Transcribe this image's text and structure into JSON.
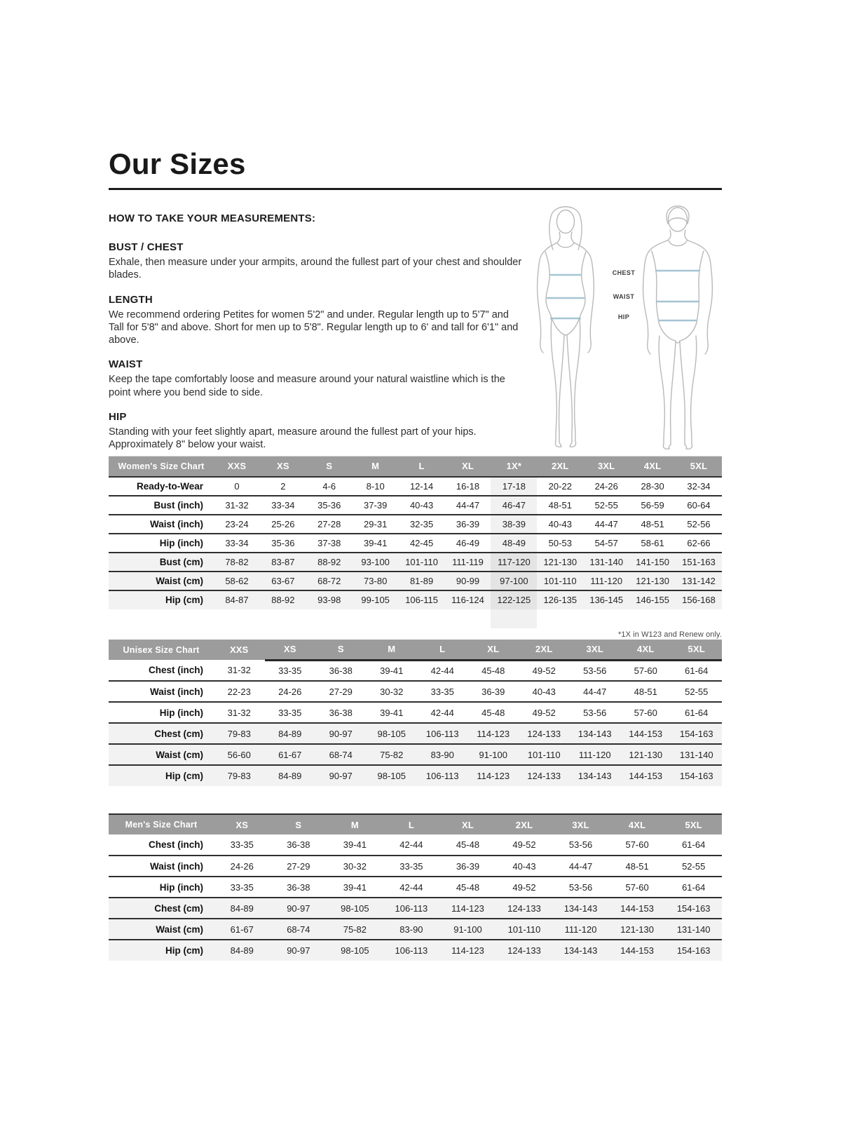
{
  "page": {
    "title": "Our Sizes",
    "how_to": "HOW TO TAKE YOUR MEASUREMENTS:",
    "sections": [
      {
        "heading": "BUST / CHEST",
        "body": "Exhale, then measure under your armpits, around the fullest part of your chest and shoulder blades."
      },
      {
        "heading": "LENGTH",
        "body": "We recommend ordering Petites for women 5'2\" and under. Regular length up to 5'7\" and Tall for 5'8\" and above. Short for men up to 5'8\". Regular length up to 6' and tall for 6'1\" and above."
      },
      {
        "heading": "WAIST",
        "body": "Keep the tape comfortably loose and measure around your natural waistline which is the point where you bend side to side."
      },
      {
        "heading": "HIP",
        "body": "Standing with your feet slightly apart, measure around the fullest part of your hips. Approximately 8\" below your waist."
      }
    ],
    "figure_labels": [
      "CHEST",
      "WAIST",
      "HIP"
    ]
  },
  "colors": {
    "header_gray": "#9c9c9c",
    "zebra_row": "#f2f2f2",
    "column_highlight": "#e9e9e9",
    "measure_line_blue": "#a6c4d4",
    "rule_black": "#1c1c1c"
  },
  "tables": [
    {
      "name": "Women's Size Chart",
      "columns": [
        "XXS",
        "XS",
        "S",
        "M",
        "L",
        "XL",
        "1X*",
        "2XL",
        "3XL",
        "4XL",
        "5XL"
      ],
      "highlight_index": 6,
      "extension_row": true,
      "footnote": "*1X in W123 and Renew only.",
      "rows": [
        {
          "label": "Ready-to-Wear",
          "shaded": false,
          "values": [
            "0",
            "2",
            "4-6",
            "8-10",
            "12-14",
            "16-18",
            "17-18",
            "20-22",
            "24-26",
            "28-30",
            "32-34"
          ]
        },
        {
          "label": "Bust (inch)",
          "shaded": false,
          "values": [
            "31-32",
            "33-34",
            "35-36",
            "37-39",
            "40-43",
            "44-47",
            "46-47",
            "48-51",
            "52-55",
            "56-59",
            "60-64"
          ]
        },
        {
          "label": "Waist (inch)",
          "shaded": false,
          "values": [
            "23-24",
            "25-26",
            "27-28",
            "29-31",
            "32-35",
            "36-39",
            "38-39",
            "40-43",
            "44-47",
            "48-51",
            "52-56"
          ]
        },
        {
          "label": "Hip (inch)",
          "shaded": false,
          "values": [
            "33-34",
            "35-36",
            "37-38",
            "39-41",
            "42-45",
            "46-49",
            "48-49",
            "50-53",
            "54-57",
            "58-61",
            "62-66"
          ]
        },
        {
          "label": "Bust (cm)",
          "shaded": true,
          "values": [
            "78-82",
            "83-87",
            "88-92",
            "93-100",
            "101-110",
            "111-119",
            "117-120",
            "121-130",
            "131-140",
            "141-150",
            "151-163"
          ]
        },
        {
          "label": "Waist (cm)",
          "shaded": true,
          "values": [
            "58-62",
            "63-67",
            "68-72",
            "73-80",
            "81-89",
            "90-99",
            "97-100",
            "101-110",
            "111-120",
            "121-130",
            "131-142"
          ]
        },
        {
          "label": "Hip (cm)",
          "shaded": true,
          "values": [
            "84-87",
            "88-92",
            "93-98",
            "99-105",
            "106-115",
            "116-124",
            "122-125",
            "126-135",
            "136-145",
            "146-155",
            "156-168"
          ]
        }
      ]
    },
    {
      "name": "Unisex Size Chart",
      "columns": [
        "XXS",
        "XS",
        "S",
        "M",
        "L",
        "XL",
        "2XL",
        "3XL",
        "4XL",
        "5XL"
      ],
      "highlight_index": -1,
      "extension_row": false,
      "footnote": "",
      "rows": [
        {
          "label": "Chest (inch)",
          "shaded": false,
          "values": [
            "31-32",
            "33-35",
            "36-38",
            "39-41",
            "42-44",
            "45-48",
            "49-52",
            "53-56",
            "57-60",
            "61-64"
          ]
        },
        {
          "label": "Waist (inch)",
          "shaded": false,
          "values": [
            "22-23",
            "24-26",
            "27-29",
            "30-32",
            "33-35",
            "36-39",
            "40-43",
            "44-47",
            "48-51",
            "52-55"
          ]
        },
        {
          "label": "Hip (inch)",
          "shaded": false,
          "values": [
            "31-32",
            "33-35",
            "36-38",
            "39-41",
            "42-44",
            "45-48",
            "49-52",
            "53-56",
            "57-60",
            "61-64"
          ]
        },
        {
          "label": "Chest (cm)",
          "shaded": true,
          "values": [
            "79-83",
            "84-89",
            "90-97",
            "98-105",
            "106-113",
            "114-123",
            "124-133",
            "134-143",
            "144-153",
            "154-163"
          ]
        },
        {
          "label": "Waist (cm)",
          "shaded": true,
          "values": [
            "56-60",
            "61-67",
            "68-74",
            "75-82",
            "83-90",
            "91-100",
            "101-110",
            "111-120",
            "121-130",
            "131-140"
          ]
        },
        {
          "label": "Hip (cm)",
          "shaded": true,
          "values": [
            "79-83",
            "84-89",
            "90-97",
            "98-105",
            "106-113",
            "114-123",
            "124-133",
            "134-143",
            "144-153",
            "154-163"
          ]
        }
      ]
    },
    {
      "name": "Men's Size Chart",
      "columns": [
        "XS",
        "S",
        "M",
        "L",
        "XL",
        "2XL",
        "3XL",
        "4XL",
        "5XL"
      ],
      "highlight_index": -1,
      "extension_row": false,
      "footnote": "",
      "rows": [
        {
          "label": "Chest (inch)",
          "shaded": false,
          "values": [
            "33-35",
            "36-38",
            "39-41",
            "42-44",
            "45-48",
            "49-52",
            "53-56",
            "57-60",
            "61-64"
          ]
        },
        {
          "label": "Waist (inch)",
          "shaded": false,
          "values": [
            "24-26",
            "27-29",
            "30-32",
            "33-35",
            "36-39",
            "40-43",
            "44-47",
            "48-51",
            "52-55"
          ]
        },
        {
          "label": "Hip (inch)",
          "shaded": false,
          "values": [
            "33-35",
            "36-38",
            "39-41",
            "42-44",
            "45-48",
            "49-52",
            "53-56",
            "57-60",
            "61-64"
          ]
        },
        {
          "label": "Chest (cm)",
          "shaded": true,
          "values": [
            "84-89",
            "90-97",
            "98-105",
            "106-113",
            "114-123",
            "124-133",
            "134-143",
            "144-153",
            "154-163"
          ]
        },
        {
          "label": "Waist (cm)",
          "shaded": true,
          "values": [
            "61-67",
            "68-74",
            "75-82",
            "83-90",
            "91-100",
            "101-110",
            "111-120",
            "121-130",
            "131-140"
          ]
        },
        {
          "label": "Hip (cm)",
          "shaded": true,
          "values": [
            "84-89",
            "90-97",
            "98-105",
            "106-113",
            "114-123",
            "124-133",
            "134-143",
            "144-153",
            "154-163"
          ]
        }
      ]
    }
  ]
}
